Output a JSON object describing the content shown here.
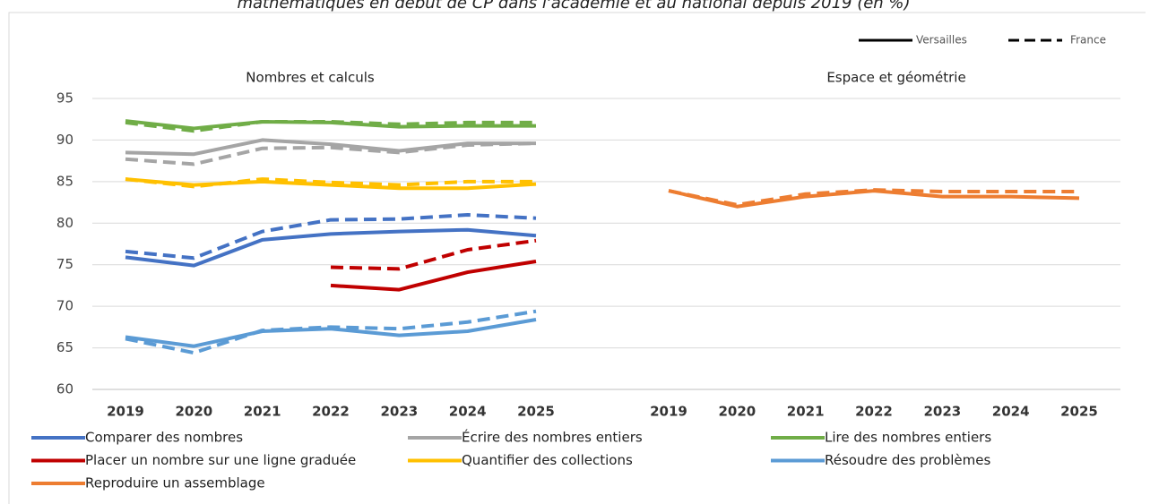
{
  "title": "mathématiques en début de CP dans l'académie et au national depuis 2019 (en %)",
  "style_legend": [
    {
      "name": "Versailles",
      "dashed": false
    },
    {
      "name": "France",
      "dashed": true
    }
  ],
  "chart_data": [
    {
      "type": "line",
      "title": "Nombres et calculs",
      "categories": [
        "2019",
        "2020",
        "2021",
        "2022",
        "2023",
        "2024",
        "2025"
      ],
      "ylim": [
        60,
        95
      ],
      "yticks": [
        60,
        65,
        70,
        75,
        80,
        85,
        90,
        95
      ],
      "grid": true,
      "series": [
        {
          "name": "Comparer des nombres",
          "color": "#4472c4",
          "versailles": [
            75.9,
            74.9,
            78.0,
            78.7,
            79.0,
            79.2,
            78.5
          ],
          "france": [
            76.6,
            75.8,
            79.0,
            80.4,
            80.5,
            81.0,
            80.6
          ]
        },
        {
          "name": "Écrire des nombres entiers",
          "color": "#a5a5a5",
          "versailles": [
            88.5,
            88.3,
            90.0,
            89.5,
            88.7,
            89.6,
            89.6
          ],
          "france": [
            87.7,
            87.1,
            89.0,
            89.1,
            88.5,
            89.4,
            89.6
          ]
        },
        {
          "name": "Lire des nombres entiers",
          "color": "#70ad47",
          "versailles": [
            92.3,
            91.4,
            92.2,
            92.1,
            91.6,
            91.7,
            91.7
          ],
          "france": [
            92.1,
            91.1,
            92.2,
            92.2,
            91.9,
            92.1,
            92.1
          ]
        },
        {
          "name": "Placer un nombre sur une ligne graduée",
          "color": "#c00000",
          "versailles": [
            null,
            null,
            null,
            72.5,
            72.0,
            74.1,
            75.4
          ],
          "france": [
            null,
            null,
            null,
            74.7,
            74.5,
            76.8,
            77.9
          ]
        },
        {
          "name": "Quantifier des collections",
          "color": "#ffc000",
          "versailles": [
            85.3,
            84.6,
            85.0,
            84.6,
            84.2,
            84.2,
            84.7
          ],
          "france": [
            85.3,
            84.4,
            85.3,
            84.9,
            84.6,
            85.0,
            85.0
          ]
        },
        {
          "name": "Résoudre des problèmes",
          "color": "#5b9bd5",
          "versailles": [
            66.3,
            65.2,
            67.0,
            67.3,
            66.5,
            67.0,
            68.4
          ],
          "france": [
            66.1,
            64.4,
            67.1,
            67.5,
            67.3,
            68.1,
            69.4
          ]
        }
      ]
    },
    {
      "type": "line",
      "title": "Espace et géométrie",
      "categories": [
        "2019",
        "2020",
        "2021",
        "2022",
        "2023",
        "2024",
        "2025"
      ],
      "ylim": [
        60,
        95
      ],
      "grid": true,
      "series": [
        {
          "name": "Reproduire un assemblage",
          "color": "#ed7d31",
          "versailles": [
            83.9,
            82.0,
            83.2,
            83.9,
            83.2,
            83.2,
            83.0
          ],
          "france": [
            83.9,
            82.2,
            83.5,
            84.0,
            83.8,
            83.8,
            83.8
          ]
        }
      ]
    }
  ]
}
